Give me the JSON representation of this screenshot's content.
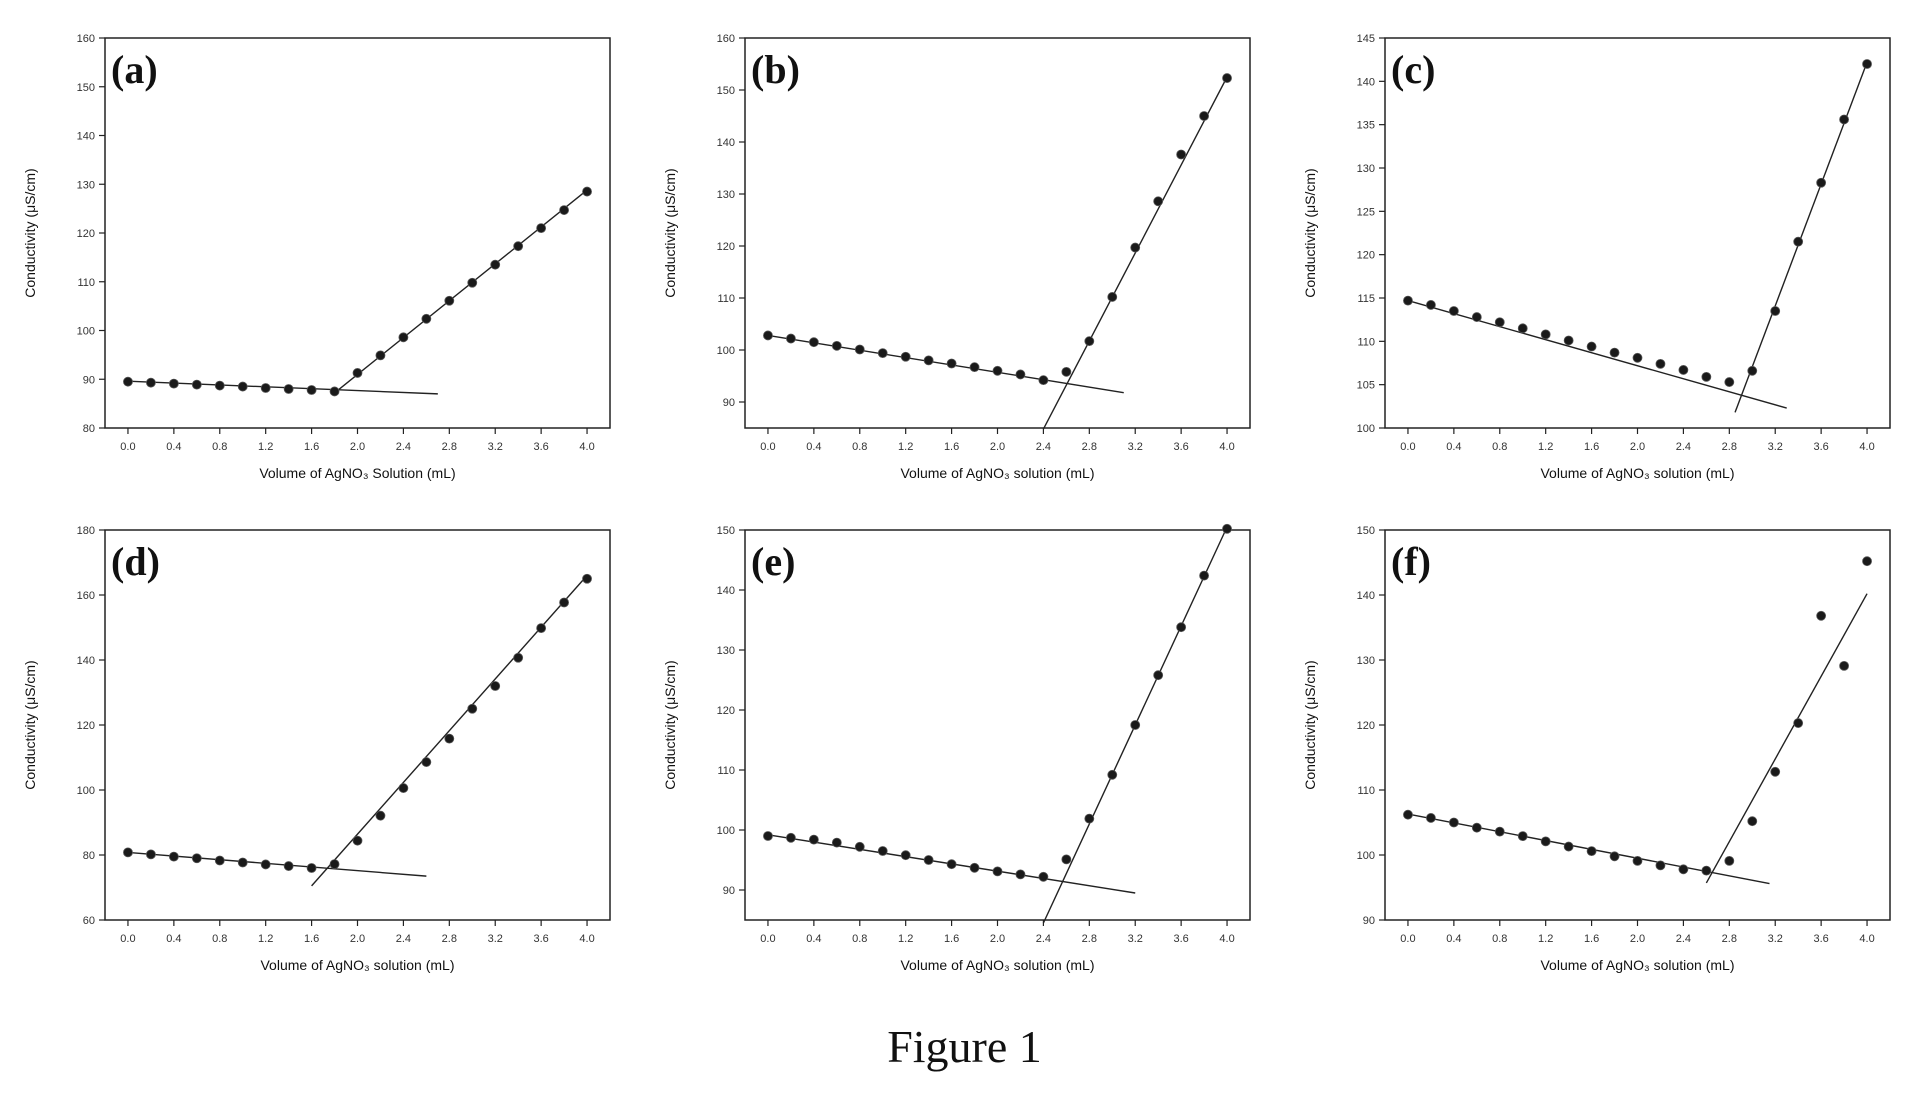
{
  "figure_caption": "Figure 1",
  "chart_data": [
    {
      "type": "scatter",
      "panel_label": "(a)",
      "xlabel": "Volume of AgNO₃ Solution (mL)",
      "ylabel": "Conductivity (μS/cm)",
      "xlim": [
        -0.2,
        4.2
      ],
      "ylim": [
        80,
        160
      ],
      "xticks": [
        "0.0",
        "0.4",
        "0.8",
        "1.2",
        "1.6",
        "2.0",
        "2.4",
        "2.8",
        "3.2",
        "3.6",
        "4.0"
      ],
      "yticks": [
        "80",
        "90",
        "100",
        "110",
        "120",
        "130",
        "140",
        "150",
        "160"
      ],
      "series": [
        {
          "x": [
            0.0,
            0.2,
            0.4,
            0.6,
            0.8,
            1.0,
            1.2,
            1.4,
            1.6,
            1.8,
            2.0,
            2.2,
            2.4,
            2.6,
            2.8,
            3.0,
            3.2,
            3.4,
            3.6,
            3.8,
            4.0
          ],
          "y": [
            89.5,
            89.3,
            89.1,
            88.9,
            88.7,
            88.5,
            88.2,
            88.0,
            87.8,
            87.5,
            91.3,
            94.9,
            98.6,
            102.4,
            106.1,
            109.8,
            113.5,
            117.3,
            121.0,
            124.7,
            128.5
          ]
        }
      ],
      "fit_lines": [
        {
          "x": [
            0.0,
            2.7
          ],
          "y": [
            89.6,
            87.0
          ]
        },
        {
          "x": [
            1.8,
            4.0
          ],
          "y": [
            87.2,
            128.8
          ]
        }
      ]
    },
    {
      "type": "scatter",
      "panel_label": "(b)",
      "xlabel": "Volume of AgNO₃ solution (mL)",
      "ylabel": "Conductivity (μS/cm)",
      "xlim": [
        -0.2,
        4.2
      ],
      "ylim": [
        85,
        160
      ],
      "xticks": [
        "0.0",
        "0.4",
        "0.8",
        "1.2",
        "1.6",
        "2.0",
        "2.4",
        "2.8",
        "3.2",
        "3.6",
        "4.0"
      ],
      "yticks": [
        "90",
        "100",
        "110",
        "120",
        "130",
        "140",
        "150",
        "160"
      ],
      "series": [
        {
          "x": [
            0.0,
            0.2,
            0.4,
            0.6,
            0.8,
            1.0,
            1.2,
            1.4,
            1.6,
            1.8,
            2.0,
            2.2,
            2.4,
            2.6,
            2.8,
            3.0,
            3.2,
            3.4,
            3.6,
            3.8,
            4.0
          ],
          "y": [
            102.8,
            102.2,
            101.5,
            100.8,
            100.1,
            99.4,
            98.7,
            98.0,
            97.4,
            96.7,
            96.0,
            95.3,
            94.2,
            95.8,
            101.7,
            110.2,
            119.7,
            128.6,
            137.6,
            145.0,
            152.3
          ]
        }
      ],
      "fit_lines": [
        {
          "x": [
            0.0,
            3.1
          ],
          "y": [
            102.8,
            91.8
          ]
        },
        {
          "x": [
            2.4,
            4.0
          ],
          "y": [
            84.8,
            152.5
          ]
        }
      ]
    },
    {
      "type": "scatter",
      "panel_label": "(c)",
      "xlabel": "Volume of AgNO₃ solution (mL)",
      "ylabel": "Conductivity (μS/cm)",
      "xlim": [
        -0.2,
        4.2
      ],
      "ylim": [
        100,
        145
      ],
      "xticks": [
        "0.0",
        "0.4",
        "0.8",
        "1.2",
        "1.6",
        "2.0",
        "2.4",
        "2.8",
        "3.2",
        "3.6",
        "4.0"
      ],
      "yticks": [
        "100",
        "105",
        "110",
        "115",
        "120",
        "125",
        "130",
        "135",
        "140",
        "145"
      ],
      "series": [
        {
          "x": [
            0.0,
            0.2,
            0.4,
            0.6,
            0.8,
            1.0,
            1.2,
            1.4,
            1.6,
            1.8,
            2.0,
            2.2,
            2.4,
            2.6,
            2.8,
            3.0,
            3.2,
            3.4,
            3.6,
            3.8,
            4.0
          ],
          "y": [
            114.7,
            114.2,
            113.5,
            112.8,
            112.2,
            111.5,
            110.8,
            110.1,
            109.4,
            108.7,
            108.1,
            107.4,
            106.7,
            105.9,
            105.3,
            106.6,
            113.5,
            121.5,
            128.3,
            135.6,
            142.0
          ]
        }
      ],
      "fit_lines": [
        {
          "x": [
            0.0,
            3.3
          ],
          "y": [
            114.7,
            102.3
          ]
        },
        {
          "x": [
            2.85,
            4.0
          ],
          "y": [
            101.8,
            142.2
          ]
        }
      ]
    },
    {
      "type": "scatter",
      "panel_label": "(d)",
      "xlabel": "Volume of AgNO₃ solution (mL)",
      "ylabel": "Conductivity (μS/cm)",
      "xlim": [
        -0.2,
        4.2
      ],
      "ylim": [
        60,
        180
      ],
      "xticks": [
        "0.0",
        "0.4",
        "0.8",
        "1.2",
        "1.6",
        "2.0",
        "2.4",
        "2.8",
        "3.2",
        "3.6",
        "4.0"
      ],
      "yticks": [
        "60",
        "80",
        "100",
        "120",
        "140",
        "160",
        "180"
      ],
      "series": [
        {
          "x": [
            0.0,
            0.2,
            0.4,
            0.6,
            0.8,
            1.0,
            1.2,
            1.4,
            1.6,
            1.8,
            2.0,
            2.2,
            2.4,
            2.6,
            2.8,
            3.0,
            3.2,
            3.4,
            3.6,
            3.8,
            4.0
          ],
          "y": [
            80.8,
            80.2,
            79.5,
            79.0,
            78.3,
            77.7,
            77.1,
            76.6,
            76.0,
            77.2,
            84.4,
            92.1,
            100.6,
            108.6,
            115.8,
            125.0,
            132.0,
            140.7,
            149.8,
            157.7,
            165.0
          ]
        }
      ],
      "fit_lines": [
        {
          "x": [
            0.0,
            2.6
          ],
          "y": [
            80.8,
            73.5
          ]
        },
        {
          "x": [
            1.6,
            4.0
          ],
          "y": [
            70.5,
            166.0
          ]
        }
      ]
    },
    {
      "type": "scatter",
      "panel_label": "(e)",
      "xlabel": "Volume of AgNO₃ solution (mL)",
      "ylabel": "Conductivity (μS/cm)",
      "xlim": [
        -0.2,
        4.2
      ],
      "ylim": [
        85,
        150
      ],
      "xticks": [
        "0.0",
        "0.4",
        "0.8",
        "1.2",
        "1.6",
        "2.0",
        "2.4",
        "2.8",
        "3.2",
        "3.6",
        "4.0"
      ],
      "yticks": [
        "90",
        "100",
        "110",
        "120",
        "130",
        "140",
        "150"
      ],
      "series": [
        {
          "x": [
            0.0,
            0.2,
            0.4,
            0.6,
            0.8,
            1.0,
            1.2,
            1.4,
            1.6,
            1.8,
            2.0,
            2.2,
            2.4,
            2.6,
            2.8,
            3.0,
            3.2,
            3.4,
            3.6,
            3.8,
            4.0
          ],
          "y": [
            99.0,
            98.7,
            98.4,
            97.9,
            97.2,
            96.5,
            95.8,
            95.0,
            94.3,
            93.7,
            93.1,
            92.6,
            92.2,
            95.1,
            101.9,
            109.2,
            117.5,
            125.8,
            133.8,
            142.4,
            150.2
          ]
        }
      ],
      "fit_lines": [
        {
          "x": [
            0.0,
            3.2
          ],
          "y": [
            99.2,
            89.5
          ]
        },
        {
          "x": [
            2.4,
            4.0
          ],
          "y": [
            84.5,
            150.5
          ]
        }
      ]
    },
    {
      "type": "scatter",
      "panel_label": "(f)",
      "xlabel": "Volume of AgNO₃ solution (mL)",
      "ylabel": "Conductivity (μS/cm)",
      "xlim": [
        -0.2,
        4.2
      ],
      "ylim": [
        90,
        150
      ],
      "xticks": [
        "0.0",
        "0.4",
        "0.8",
        "1.2",
        "1.6",
        "2.0",
        "2.4",
        "2.8",
        "3.2",
        "3.6",
        "4.0"
      ],
      "yticks": [
        "90",
        "100",
        "110",
        "120",
        "130",
        "140",
        "150"
      ],
      "series": [
        {
          "x": [
            0.0,
            0.2,
            0.4,
            0.6,
            0.8,
            1.0,
            1.2,
            1.4,
            1.6,
            1.8,
            2.0,
            2.2,
            2.4,
            2.6,
            2.8,
            3.0,
            3.2,
            3.4,
            3.6,
            3.8,
            4.0
          ],
          "y": [
            106.2,
            105.7,
            105.0,
            104.2,
            103.6,
            102.9,
            102.1,
            101.3,
            100.6,
            99.8,
            99.1,
            98.4,
            97.8,
            97.6,
            99.1,
            105.2,
            112.8,
            120.3,
            136.8,
            129.1,
            145.2
          ]
        }
      ],
      "fit_lines": [
        {
          "x": [
            0.0,
            3.15
          ],
          "y": [
            106.3,
            95.6
          ]
        },
        {
          "x": [
            2.6,
            4.0
          ],
          "y": [
            95.7,
            140.2
          ]
        }
      ]
    }
  ]
}
